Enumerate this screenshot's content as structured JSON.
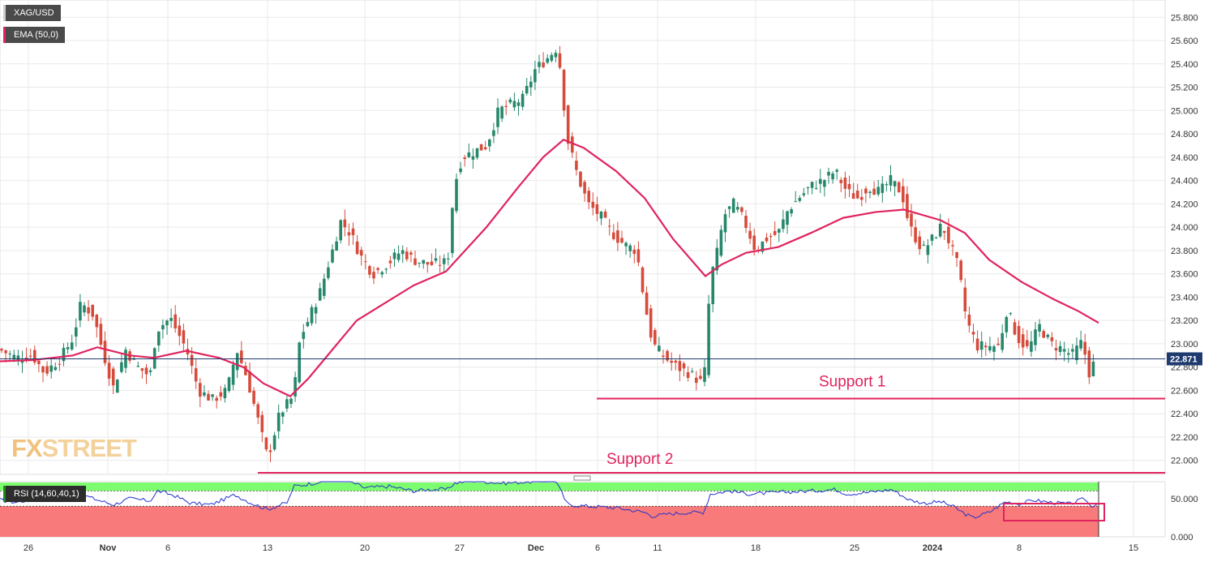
{
  "legend": {
    "symbol": "XAG/USD",
    "ema": "EMA (50,0)",
    "rsi": "RSI (14,60,40,1)"
  },
  "logo": {
    "fx": "FX",
    "street": "STREET"
  },
  "colors": {
    "bull": "#26876b",
    "bear": "#d64b3b",
    "ema": "#e0245e",
    "support": "#e0245e",
    "last_price_line": "#1f3a6e",
    "rsi_line": "#2233cc",
    "rsi_upper_zone": "#7cfc6e",
    "rsi_lower_zone": "#f87a7a",
    "grid": "#e9e9e9"
  },
  "chart_data": [
    {
      "type": "candlestick",
      "title": "",
      "symbol": "XAG/USD",
      "y_ticks": [
        "22.000",
        "22.200",
        "22.400",
        "22.600",
        "22.800",
        "23.000",
        "23.200",
        "23.400",
        "23.600",
        "23.800",
        "24.000",
        "24.200",
        "24.400",
        "24.600",
        "24.800",
        "25.000",
        "25.200",
        "25.400",
        "25.600",
        "25.800"
      ],
      "ylim": [
        21.88,
        25.92
      ],
      "x_tick_labels": [
        "26",
        "Nov",
        "6",
        "13",
        "20",
        "27",
        "Dec",
        "6",
        "11",
        "18",
        "25",
        "2024",
        "8",
        "15"
      ],
      "last_price": 22.871,
      "last_price_label": "22.871",
      "grid": true,
      "annotations": [
        {
          "label": "Support 1",
          "level": 22.53
        },
        {
          "label": "Support 2",
          "level": 21.89
        }
      ],
      "price_path": [
        [
          0,
          22.95
        ],
        [
          20,
          22.88
        ],
        [
          40,
          22.9
        ],
        [
          55,
          22.75
        ],
        [
          75,
          22.88
        ],
        [
          90,
          23.05
        ],
        [
          100,
          23.35
        ],
        [
          115,
          23.25
        ],
        [
          125,
          22.98
        ],
        [
          140,
          22.62
        ],
        [
          155,
          22.95
        ],
        [
          170,
          22.8
        ],
        [
          185,
          22.72
        ],
        [
          193,
          23.12
        ],
        [
          210,
          23.22
        ],
        [
          230,
          22.95
        ],
        [
          245,
          22.6
        ],
        [
          262,
          22.52
        ],
        [
          280,
          22.6
        ],
        [
          292,
          22.95
        ],
        [
          305,
          22.7
        ],
        [
          318,
          22.35
        ],
        [
          330,
          22.02
        ],
        [
          345,
          22.4
        ],
        [
          362,
          22.55
        ],
        [
          370,
          23.05
        ],
        [
          380,
          23.2
        ],
        [
          395,
          23.45
        ],
        [
          410,
          23.8
        ],
        [
          420,
          24.05
        ],
        [
          432,
          23.95
        ],
        [
          445,
          23.75
        ],
        [
          460,
          23.6
        ],
        [
          480,
          23.7
        ],
        [
          495,
          23.8
        ],
        [
          510,
          23.72
        ],
        [
          530,
          23.68
        ],
        [
          552,
          23.7
        ],
        [
          560,
          24.35
        ],
        [
          570,
          24.6
        ],
        [
          585,
          24.65
        ],
        [
          600,
          24.7
        ],
        [
          615,
          25.0
        ],
        [
          630,
          25.05
        ],
        [
          645,
          25.1
        ],
        [
          660,
          25.35
        ],
        [
          675,
          25.45
        ],
        [
          688,
          25.55
        ],
        [
          700,
          24.75
        ],
        [
          712,
          24.45
        ],
        [
          725,
          24.2
        ],
        [
          740,
          24.1
        ],
        [
          755,
          23.95
        ],
        [
          770,
          23.85
        ],
        [
          785,
          23.8
        ],
        [
          795,
          23.35
        ],
        [
          805,
          23.0
        ],
        [
          820,
          22.88
        ],
        [
          835,
          22.8
        ],
        [
          850,
          22.75
        ],
        [
          868,
          22.65
        ],
        [
          876,
          23.55
        ],
        [
          885,
          23.8
        ],
        [
          893,
          24.1
        ],
        [
          905,
          24.2
        ],
        [
          918,
          24.05
        ],
        [
          932,
          23.8
        ],
        [
          945,
          23.9
        ],
        [
          960,
          23.95
        ],
        [
          972,
          24.15
        ],
        [
          985,
          24.25
        ],
        [
          1000,
          24.35
        ],
        [
          1015,
          24.4
        ],
        [
          1030,
          24.48
        ],
        [
          1045,
          24.3
        ],
        [
          1058,
          24.25
        ],
        [
          1072,
          24.35
        ],
        [
          1085,
          24.3
        ],
        [
          1098,
          24.4
        ],
        [
          1112,
          24.3
        ],
        [
          1122,
          24.0
        ],
        [
          1138,
          23.8
        ],
        [
          1150,
          23.9
        ],
        [
          1162,
          24.02
        ],
        [
          1172,
          23.85
        ],
        [
          1182,
          23.65
        ],
        [
          1192,
          23.2
        ],
        [
          1205,
          22.98
        ],
        [
          1220,
          22.98
        ],
        [
          1232,
          22.98
        ],
        [
          1242,
          23.3
        ],
        [
          1255,
          23.05
        ],
        [
          1268,
          22.95
        ],
        [
          1282,
          23.15
        ],
        [
          1296,
          23.0
        ],
        [
          1312,
          22.95
        ],
        [
          1322,
          22.9
        ],
        [
          1335,
          23.02
        ],
        [
          1343,
          22.75
        ],
        [
          1352,
          22.87
        ]
      ],
      "ema_path": [
        [
          0,
          22.85
        ],
        [
          40,
          22.86
        ],
        [
          90,
          22.9
        ],
        [
          120,
          22.97
        ],
        [
          160,
          22.9
        ],
        [
          190,
          22.88
        ],
        [
          230,
          22.94
        ],
        [
          270,
          22.88
        ],
        [
          300,
          22.8
        ],
        [
          325,
          22.66
        ],
        [
          358,
          22.55
        ],
        [
          380,
          22.7
        ],
        [
          410,
          22.95
        ],
        [
          440,
          23.2
        ],
        [
          475,
          23.35
        ],
        [
          510,
          23.5
        ],
        [
          550,
          23.62
        ],
        [
          600,
          24.0
        ],
        [
          640,
          24.35
        ],
        [
          670,
          24.6
        ],
        [
          695,
          24.75
        ],
        [
          720,
          24.68
        ],
        [
          760,
          24.48
        ],
        [
          795,
          24.25
        ],
        [
          830,
          23.9
        ],
        [
          870,
          23.58
        ],
        [
          890,
          23.68
        ],
        [
          920,
          23.78
        ],
        [
          960,
          23.83
        ],
        [
          1000,
          23.95
        ],
        [
          1040,
          24.08
        ],
        [
          1080,
          24.13
        ],
        [
          1115,
          24.15
        ],
        [
          1160,
          24.06
        ],
        [
          1190,
          23.95
        ],
        [
          1220,
          23.72
        ],
        [
          1260,
          23.53
        ],
        [
          1300,
          23.38
        ],
        [
          1330,
          23.28
        ],
        [
          1355,
          23.18
        ]
      ]
    },
    {
      "type": "line",
      "title": "",
      "name": "RSI (14,60,40,1)",
      "y_ticks": [
        "0.000",
        "50.000"
      ],
      "ylim": [
        0,
        72
      ],
      "upper_level": 60,
      "lower_level": 40,
      "highlight_box": true,
      "values": [
        [
          0,
          48
        ],
        [
          20,
          45
        ],
        [
          50,
          52
        ],
        [
          80,
          47
        ],
        [
          95,
          58
        ],
        [
          115,
          50
        ],
        [
          140,
          42
        ],
        [
          160,
          50
        ],
        [
          185,
          47
        ],
        [
          195,
          60
        ],
        [
          215,
          54
        ],
        [
          235,
          44
        ],
        [
          260,
          42
        ],
        [
          290,
          55
        ],
        [
          310,
          44
        ],
        [
          330,
          36
        ],
        [
          355,
          45
        ],
        [
          362,
          66
        ],
        [
          375,
          68
        ],
        [
          395,
          72
        ],
        [
          420,
          76
        ],
        [
          432,
          72
        ],
        [
          450,
          64
        ],
        [
          480,
          66
        ],
        [
          510,
          60
        ],
        [
          530,
          62
        ],
        [
          552,
          62
        ],
        [
          560,
          70
        ],
        [
          580,
          74
        ],
        [
          600,
          72
        ],
        [
          620,
          70
        ],
        [
          650,
          72
        ],
        [
          685,
          74
        ],
        [
          700,
          42
        ],
        [
          725,
          40
        ],
        [
          760,
          38
        ],
        [
          795,
          32
        ],
        [
          805,
          27
        ],
        [
          825,
          30
        ],
        [
          850,
          32
        ],
        [
          868,
          32
        ],
        [
          876,
          56
        ],
        [
          900,
          60
        ],
        [
          925,
          56
        ],
        [
          960,
          58
        ],
        [
          1000,
          60
        ],
        [
          1030,
          62
        ],
        [
          1045,
          56
        ],
        [
          1070,
          58
        ],
        [
          1100,
          62
        ],
        [
          1122,
          48
        ],
        [
          1140,
          44
        ],
        [
          1160,
          46
        ],
        [
          1175,
          40
        ],
        [
          1190,
          30
        ],
        [
          1200,
          25
        ],
        [
          1220,
          32
        ],
        [
          1240,
          46
        ],
        [
          1258,
          43
        ],
        [
          1275,
          48
        ],
        [
          1295,
          45
        ],
        [
          1320,
          43
        ],
        [
          1338,
          50
        ],
        [
          1345,
          40
        ],
        [
          1355,
          44
        ]
      ]
    }
  ]
}
